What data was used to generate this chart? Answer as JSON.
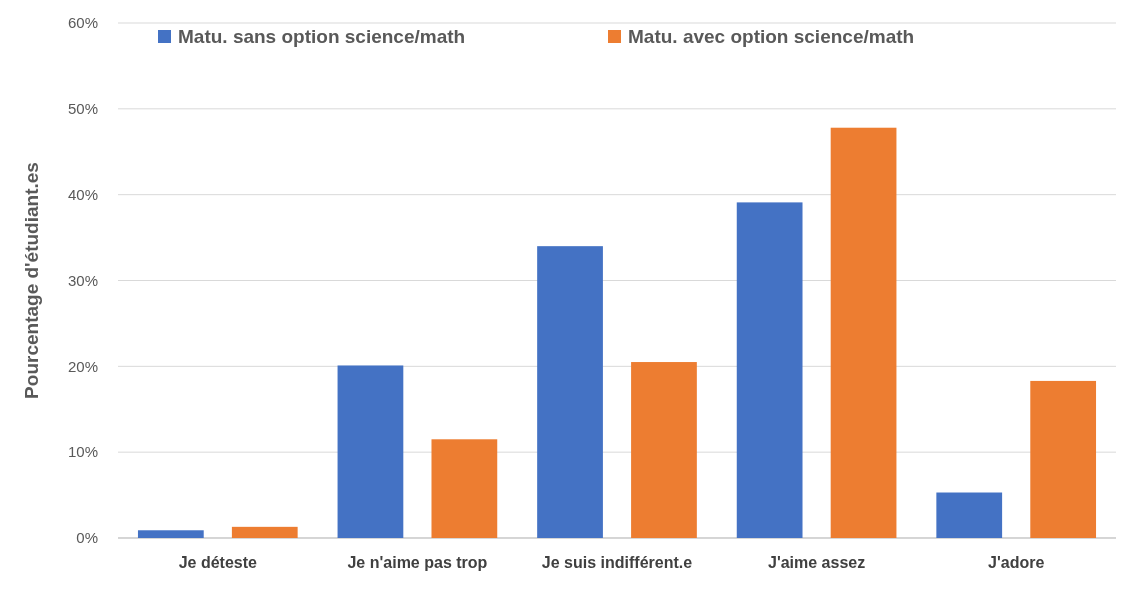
{
  "chart_data": {
    "type": "bar",
    "ylabel": "Pourcentage d'étudiant.es",
    "categories": [
      "Je déteste",
      "Je n'aime pas trop",
      "Je suis indifférent.e",
      "J'aime assez",
      "J'adore"
    ],
    "series": [
      {
        "name": "Matu. sans option science/math",
        "color": "#4472c4",
        "values": [
          0.9,
          20.1,
          34.0,
          39.1,
          5.3
        ]
      },
      {
        "name": "Matu. avec option science/math",
        "color": "#ed7d31",
        "values": [
          1.3,
          11.5,
          20.5,
          47.8,
          18.3
        ]
      }
    ],
    "ylim": [
      0,
      60
    ],
    "yticks": [
      {
        "value": 0,
        "label": "0%"
      },
      {
        "value": 10,
        "label": "10%"
      },
      {
        "value": 20,
        "label": "20%"
      },
      {
        "value": 30,
        "label": "30%"
      },
      {
        "value": 40,
        "label": "40%"
      },
      {
        "value": 50,
        "label": "50%"
      },
      {
        "value": 60,
        "label": "60%"
      }
    ],
    "grid": "y",
    "legend": "top left"
  }
}
